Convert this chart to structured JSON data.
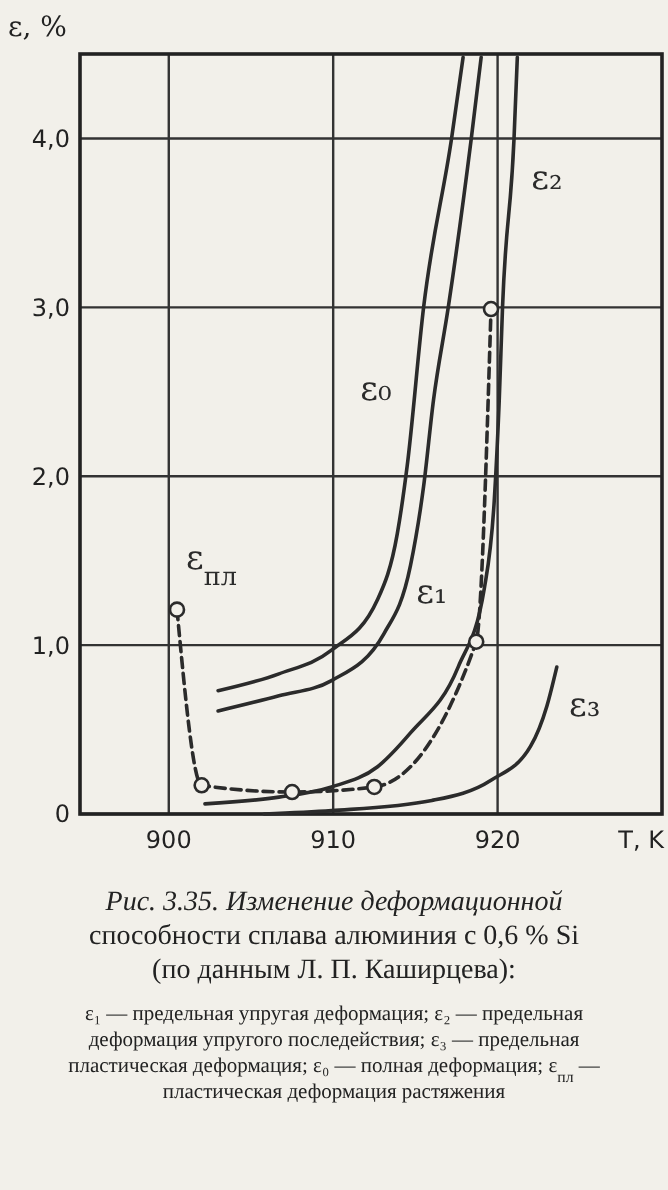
{
  "chart_data": {
    "type": "line",
    "title": "Рис. 3.35. Изменение деформационной способности сплава алюминия с 0,6 % Si (по данным Л. П. Каширцева):",
    "xlabel": "T, K",
    "ylabel": "ε, %",
    "xlim": [
      894.6,
      930
    ],
    "xticks": [
      900,
      910,
      920
    ],
    "ylim": [
      0,
      4.5
    ],
    "yticks": [
      0,
      {
        "value": 1,
        "label": "1,0"
      },
      {
        "value": 2,
        "label": "2,0"
      },
      {
        "value": 3,
        "label": "3,0"
      },
      {
        "value": 4,
        "label": "4,0"
      }
    ],
    "grid": true,
    "series": [
      {
        "name": "ε₀",
        "color": "#2b2b2b",
        "line_style": "solid",
        "marker": "none",
        "x": [
          903.0,
          906.7,
          909.9,
          912.7,
          913.9,
          914.5,
          915.5,
          917.2,
          917.9
        ],
        "values": [
          0.73,
          0.83,
          0.97,
          1.27,
          1.66,
          2.06,
          3.0,
          4.0,
          4.48
        ]
      },
      {
        "name": "ε₁",
        "color": "#2b2b2b",
        "line_style": "solid",
        "marker": "none",
        "x": [
          903.0,
          906.7,
          909.9,
          913.1,
          914.7,
          915.5,
          916.1,
          917.0,
          918.4,
          919.0
        ],
        "values": [
          0.61,
          0.7,
          0.79,
          1.07,
          1.47,
          1.94,
          2.45,
          3.0,
          4.0,
          4.48
        ]
      },
      {
        "name": "ε₂",
        "color": "#2b2b2b",
        "line_style": "solid",
        "marker": "none",
        "x": [
          902.2,
          906.7,
          909.9,
          912.7,
          914.7,
          917.6,
          919.2,
          919.8,
          920.1,
          920.3,
          921.0,
          921.2
        ],
        "values": [
          0.06,
          0.1,
          0.16,
          0.28,
          0.48,
          0.87,
          1.34,
          1.86,
          2.45,
          3.0,
          4.0,
          4.48
        ]
      },
      {
        "name": "ε₃",
        "color": "#2b2b2b",
        "line_style": "solid",
        "marker": "none",
        "x": [
          905.8,
          909.9,
          916.0,
          919.6,
          922.0,
          923.0,
          923.6
        ],
        "values": [
          0.0,
          0.02,
          0.08,
          0.2,
          0.4,
          0.64,
          0.87
        ]
      },
      {
        "name": "ε$_{пл}$",
        "color": "#2b2b2b",
        "line_style": "dashed",
        "marker": "circle",
        "x": [
          900.5,
          902.0,
          907.5,
          912.5,
          918.7,
          919.6
        ],
        "values": [
          1.21,
          0.17,
          0.13,
          0.16,
          1.02,
          2.99
        ]
      }
    ],
    "annotations": [
      "ε₁ — предельная упругая деформация; ε₂ — предельная деформация упругого последействия; ε₃ — предельная пластическая деформация; ε₀ — полная деформация; ε$_{пл}$ — пластическая деформация растяжения"
    ]
  }
}
